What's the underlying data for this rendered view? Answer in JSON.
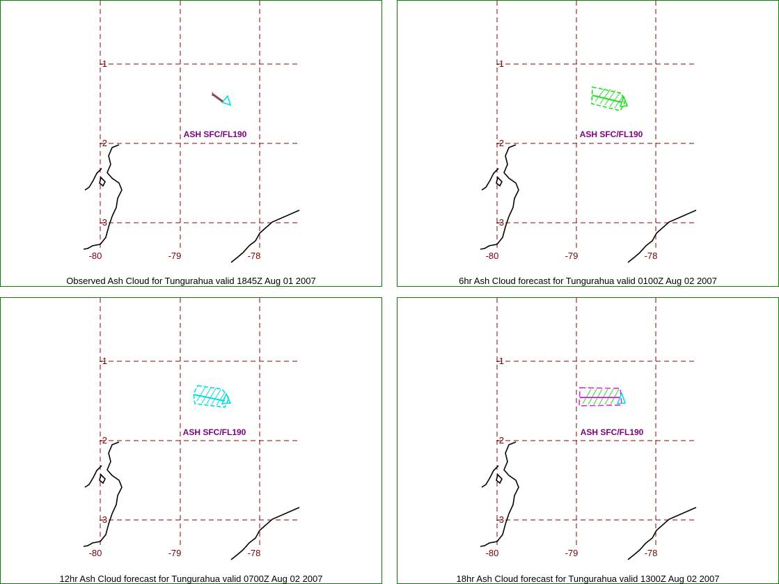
{
  "panels": [
    {
      "caption": "Observed Ash Cloud for Tungurahua valid 1845Z Aug 01 2007",
      "cloud_label": "ASH SFC/FL190",
      "cloud_color": "#00e0e0",
      "cloud_kind": "observed"
    },
    {
      "caption": "6hr Ash Cloud forecast for Tungurahua valid 0100Z Aug 02 2007",
      "cloud_label": "ASH SFC/FL190",
      "cloud_color": "#22dd22",
      "cloud_kind": "forecast"
    },
    {
      "caption": "12hr Ash Cloud forecast for Tungurahua valid 0700Z Aug 02 2007",
      "cloud_label": "ASH SFC/FL190",
      "cloud_color": "#00e0e0",
      "cloud_kind": "forecast"
    },
    {
      "caption": "18hr Ash Cloud forecast for Tungurahua valid 1300Z Aug 02 2007",
      "cloud_label": "ASH SFC/FL190",
      "cloud_color": "#ee22ee",
      "cloud_kind": "forecast"
    }
  ],
  "grid": {
    "lon_labels": [
      "-80",
      "-79",
      "-78"
    ],
    "lat_labels": [
      "-1",
      "-2",
      "-3"
    ],
    "grid_color": "#8b0000",
    "label_color": "#7a0000",
    "cloud_label_color": "#800080",
    "coast_color": "#000000"
  }
}
